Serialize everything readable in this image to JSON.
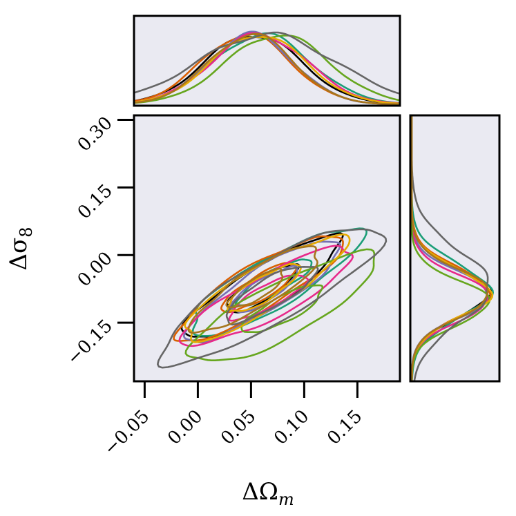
{
  "chart_data": {
    "type": "corner",
    "title": "",
    "xlabel": "ΔΩ",
    "xlabel_sub": "m",
    "ylabel": "Δσ",
    "ylabel_sub": "8",
    "xlim": [
      -0.06,
      0.19
    ],
    "ylim": [
      -0.28,
      0.31
    ],
    "xticks": [
      -0.05,
      0.0,
      0.05,
      0.1,
      0.15
    ],
    "xtick_labels": [
      "−0.05",
      "0.00",
      "0.05",
      "0.10",
      "0.15"
    ],
    "yticks": [
      -0.15,
      0.0,
      0.15,
      0.3
    ],
    "ytick_labels": [
      "−0.15",
      "0.00",
      "0.15",
      "0.30"
    ],
    "grid": false,
    "legend": "none",
    "series": [
      {
        "color": "#000000",
        "cx": 0.06,
        "cy": -0.075,
        "rx1": 0.038,
        "ry1": 0.026,
        "rx2": 0.085,
        "ry2": 0.048,
        "angle": -32,
        "x_peak": 0.052,
        "x_width": 0.045,
        "y_peak": -0.085,
        "y_width": 0.052
      },
      {
        "color": "#1b9e77",
        "cx": 0.072,
        "cy": -0.06,
        "rx1": 0.04,
        "ry1": 0.024,
        "rx2": 0.092,
        "ry2": 0.055,
        "angle": -30,
        "x_peak": 0.06,
        "x_width": 0.046,
        "y_peak": -0.08,
        "y_width": 0.06
      },
      {
        "color": "#d95f02",
        "cx": 0.058,
        "cy": -0.072,
        "rx1": 0.04,
        "ry1": 0.026,
        "rx2": 0.09,
        "ry2": 0.05,
        "angle": -31,
        "x_peak": 0.045,
        "x_width": 0.042,
        "y_peak": -0.083,
        "y_width": 0.054
      },
      {
        "color": "#7570b3",
        "cx": 0.062,
        "cy": -0.078,
        "rx1": 0.036,
        "ry1": 0.025,
        "rx2": 0.084,
        "ry2": 0.047,
        "angle": -32,
        "x_peak": 0.05,
        "x_width": 0.04,
        "y_peak": -0.088,
        "y_width": 0.05
      },
      {
        "color": "#e7298a",
        "cx": 0.066,
        "cy": -0.092,
        "rx1": 0.04,
        "ry1": 0.025,
        "rx2": 0.09,
        "ry2": 0.048,
        "angle": -28,
        "x_peak": 0.058,
        "x_width": 0.045,
        "y_peak": -0.095,
        "y_width": 0.05
      },
      {
        "color": "#66a61e",
        "cx": 0.08,
        "cy": -0.12,
        "rx1": 0.042,
        "ry1": 0.028,
        "rx2": 0.098,
        "ry2": 0.06,
        "angle": -28,
        "x_peak": 0.075,
        "x_width": 0.048,
        "y_peak": -0.105,
        "y_width": 0.048
      },
      {
        "color": "#e6ab02",
        "cx": 0.062,
        "cy": -0.074,
        "rx1": 0.039,
        "ry1": 0.026,
        "rx2": 0.088,
        "ry2": 0.049,
        "angle": -31,
        "x_peak": 0.057,
        "x_width": 0.044,
        "y_peak": -0.085,
        "y_width": 0.053
      },
      {
        "color": "#666666",
        "cx": 0.068,
        "cy": -0.085,
        "rx1": 0.048,
        "ry1": 0.032,
        "rx2": 0.118,
        "ry2": 0.068,
        "angle": -30,
        "x_peak": 0.065,
        "x_width": 0.065,
        "y_peak": -0.07,
        "y_width": 0.08
      },
      {
        "color": "#a6761d",
        "cx": 0.055,
        "cy": -0.075,
        "rx1": 0.03,
        "ry1": 0.022,
        "rx2": 0.07,
        "ry2": 0.042,
        "angle": -32,
        "x_peak": 0.05,
        "x_width": 0.04,
        "y_peak": -0.085,
        "y_width": 0.052
      }
    ]
  }
}
